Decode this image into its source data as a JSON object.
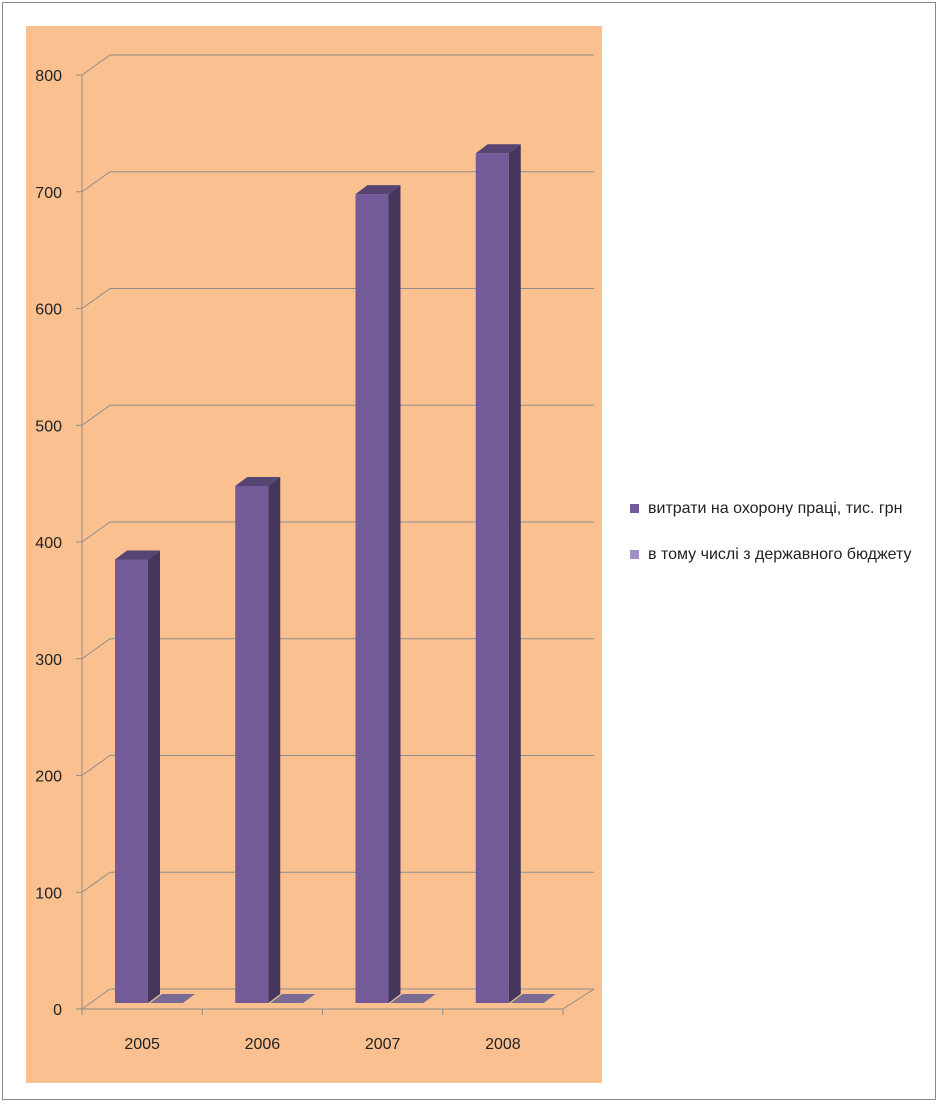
{
  "chart_data": {
    "type": "bar",
    "title": "",
    "xlabel": "",
    "ylabel": "",
    "categories": [
      "2005",
      "2006",
      "2007",
      "2008"
    ],
    "ylim": [
      0,
      800
    ],
    "yticks": [
      "0",
      "100",
      "200",
      "300",
      "400",
      "500",
      "600",
      "700",
      "800"
    ],
    "series": [
      {
        "name": "витрати на охорону праці, тис. грн",
        "values": [
          385,
          448,
          698,
          733
        ],
        "color": "#725b98"
      },
      {
        "name": "в тому числі з державного бюджету",
        "values": [
          0,
          0,
          0,
          0
        ],
        "color": "#a28fc6"
      }
    ],
    "grid": true,
    "legend_position": "right",
    "background_color": "#fac090",
    "style": "3d-column"
  }
}
